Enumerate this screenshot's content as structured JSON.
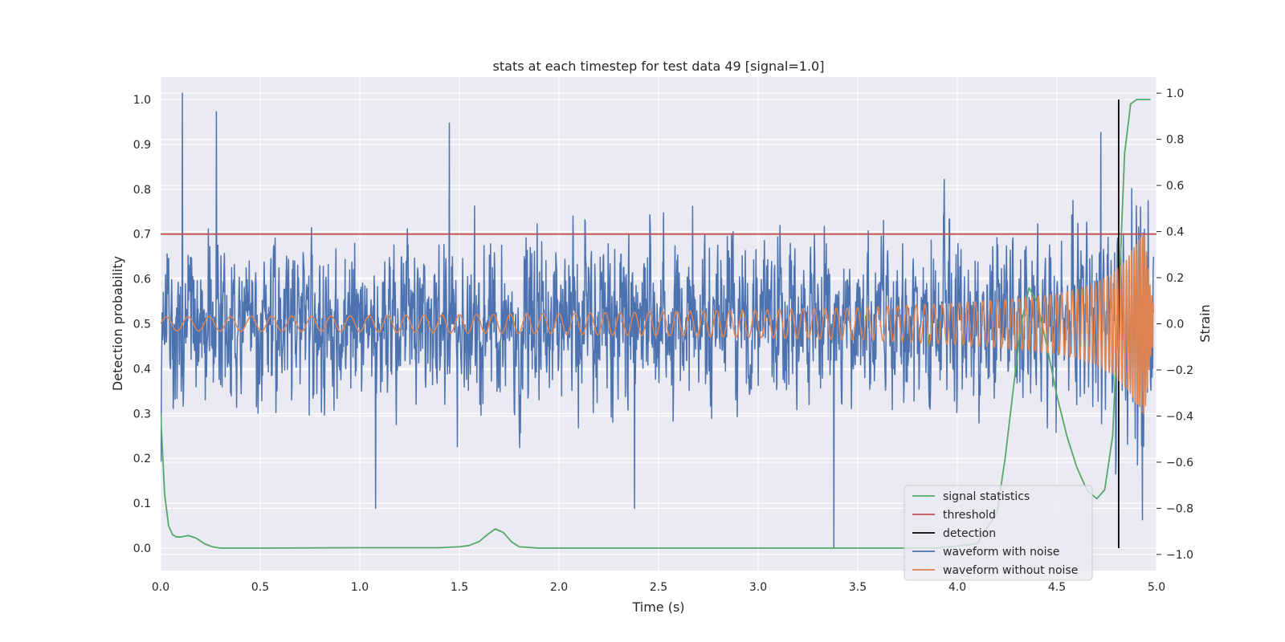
{
  "chart_data": {
    "type": "line",
    "title": "stats at each timestep for test data 49 [signal=1.0]",
    "xlabel": "Time (s)",
    "ylabel_left": "Detection probability",
    "ylabel_right": "Strain",
    "xlim": [
      0.0,
      5.0
    ],
    "ylim_left": [
      -0.05,
      1.05
    ],
    "ylim_right": [
      -1.07,
      1.07
    ],
    "xticks": [
      "0.0",
      "0.5",
      "1.0",
      "1.5",
      "2.0",
      "2.5",
      "3.0",
      "3.5",
      "4.0",
      "4.5",
      "5.0"
    ],
    "yticks_left": [
      "0.0",
      "0.1",
      "0.2",
      "0.3",
      "0.4",
      "0.5",
      "0.6",
      "0.7",
      "0.8",
      "0.9",
      "1.0"
    ],
    "yticks_right": [
      "−1.0",
      "−0.8",
      "−0.6",
      "−0.4",
      "−0.2",
      "0.0",
      "0.2",
      "0.4",
      "0.6",
      "0.8",
      "1.0"
    ],
    "grid": true,
    "legend_position": "lower-right",
    "threshold": 0.7,
    "detection_time": 4.81,
    "signal_statistics": {
      "axis": "left",
      "x": [
        0.0,
        0.02,
        0.04,
        0.06,
        0.08,
        0.1,
        0.14,
        0.18,
        0.22,
        0.26,
        0.3,
        0.5,
        1.0,
        1.4,
        1.5,
        1.55,
        1.6,
        1.64,
        1.68,
        1.72,
        1.76,
        1.8,
        1.9,
        2.5,
        3.0,
        3.5,
        3.9,
        4.1,
        4.2,
        4.24,
        4.28,
        4.32,
        4.36,
        4.4,
        4.45,
        4.5,
        4.55,
        4.6,
        4.65,
        4.7,
        4.74,
        4.78,
        4.81,
        4.84,
        4.87,
        4.9,
        4.93,
        4.97
      ],
      "y": [
        0.3,
        0.12,
        0.05,
        0.03,
        0.025,
        0.025,
        0.028,
        0.022,
        0.01,
        0.003,
        0.0,
        0.0,
        0.001,
        0.001,
        0.003,
        0.006,
        0.015,
        0.03,
        0.043,
        0.035,
        0.015,
        0.003,
        0.0,
        0.0,
        0.0,
        0.0,
        0.0,
        0.01,
        0.08,
        0.2,
        0.35,
        0.5,
        0.58,
        0.55,
        0.45,
        0.34,
        0.25,
        0.18,
        0.13,
        0.11,
        0.13,
        0.25,
        0.55,
        0.88,
        0.99,
        1.0,
        1.0,
        1.0
      ]
    },
    "waveform_with_noise": {
      "axis": "right",
      "noise_amplitude": 0.25,
      "peak_values": [
        {
          "x": 0.11,
          "y": 1.0
        },
        {
          "x": 0.28,
          "y": 0.92
        },
        {
          "x": 1.08,
          "y": -0.8
        },
        {
          "x": 1.45,
          "y": 0.87
        },
        {
          "x": 2.38,
          "y": -0.8
        },
        {
          "x": 3.38,
          "y": -0.97
        },
        {
          "x": 4.72,
          "y": 0.83
        },
        {
          "x": 4.93,
          "y": -0.85
        }
      ]
    },
    "waveform_without_noise": {
      "axis": "right",
      "x": [
        0.0,
        1.0,
        2.0,
        3.0,
        3.5,
        4.0,
        4.3,
        4.5,
        4.6,
        4.7,
        4.78,
        4.85,
        4.9,
        4.94,
        4.97,
        5.0
      ],
      "amplitude": [
        0.03,
        0.035,
        0.045,
        0.06,
        0.07,
        0.09,
        0.11,
        0.13,
        0.15,
        0.18,
        0.22,
        0.28,
        0.35,
        0.4,
        0.15,
        0.02
      ],
      "frequency_hz": [
        9.0,
        10.5,
        12.5,
        16.0,
        19.0,
        24.0,
        29.0,
        35.0,
        40.0,
        48.0,
        58.0,
        72.0,
        88.0,
        105.0,
        120.0,
        130.0
      ]
    },
    "legend": [
      {
        "label": "signal statistics",
        "color": "#55a868"
      },
      {
        "label": "threshold",
        "color": "#c44e52"
      },
      {
        "label": "detection",
        "color": "#000000"
      },
      {
        "label": "waveform with noise",
        "color": "#4c72b0"
      },
      {
        "label": "waveform without noise",
        "color": "#dd8452"
      }
    ],
    "colors": {
      "background": "#eaeaf2",
      "grid": "#ffffff",
      "signal_statistics": "#55a868",
      "threshold": "#c44e52",
      "detection": "#000000",
      "waveform_with_noise": "#4c72b0",
      "waveform_without_noise": "#dd8452"
    }
  }
}
